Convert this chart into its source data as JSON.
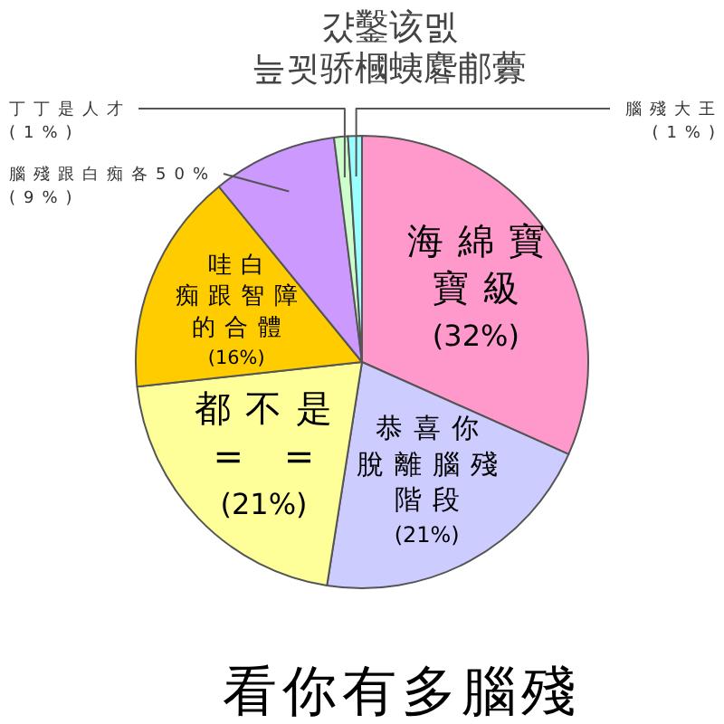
{
  "chart_data": {
    "type": "pie",
    "subtitle": "걌鑿该멠\n늪꾓骄槶蛦麔郙虋",
    "title": "看你有多腦殘",
    "categories": [
      "海綿寶寶級",
      "恭喜你脫離腦殘階段",
      "都不是= =",
      "哇白痴跟智障的合體",
      "腦殘跟白痴各50%",
      "丁丁是人才",
      "腦殘大王"
    ],
    "values": [
      32,
      21,
      21,
      16,
      9,
      1,
      1
    ],
    "value_labels": [
      "(32%)",
      "(21%)",
      "(21%)",
      "(16%)",
      "(9%)",
      "(1%)",
      "(1%)"
    ],
    "colors": [
      "#ff99cc",
      "#ccccff",
      "#ffff99",
      "#ffcc00",
      "#cc99ff",
      "#ccffcc",
      "#99ffff"
    ]
  }
}
